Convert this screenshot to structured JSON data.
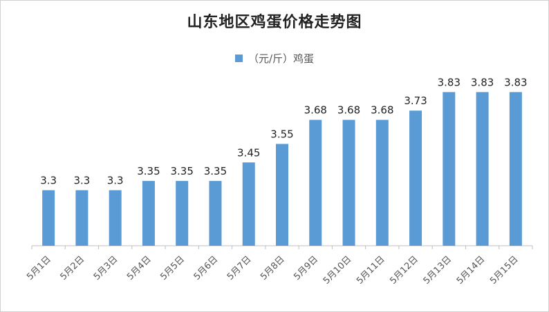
{
  "chart_data": {
    "type": "bar",
    "title": "山东地区鸡蛋价格走势图",
    "legend_position": "top",
    "series": [
      {
        "name": "（元/斤）鸡蛋",
        "color": "#5b9bd5",
        "values": [
          3.3,
          3.3,
          3.3,
          3.35,
          3.35,
          3.35,
          3.45,
          3.55,
          3.68,
          3.68,
          3.68,
          3.73,
          3.83,
          3.83,
          3.83
        ],
        "labels": [
          "3.3",
          "3.3",
          "3.3",
          "3.35",
          "3.35",
          "3.35",
          "3.45",
          "3.55",
          "3.68",
          "3.68",
          "3.68",
          "3.73",
          "3.83",
          "3.83",
          "3.83"
        ]
      }
    ],
    "categories": [
      "5月1日",
      "5月2日",
      "5月3日",
      "5月4日",
      "5月5日",
      "5月6日",
      "5月7日",
      "5月8日",
      "5月9日",
      "5月10日",
      "5月11日",
      "5月12日",
      "5月13日",
      "5月14日",
      "5月15日"
    ],
    "ylim": [
      3.0,
      3.88
    ],
    "grid": false,
    "xlabel": "",
    "ylabel": ""
  }
}
